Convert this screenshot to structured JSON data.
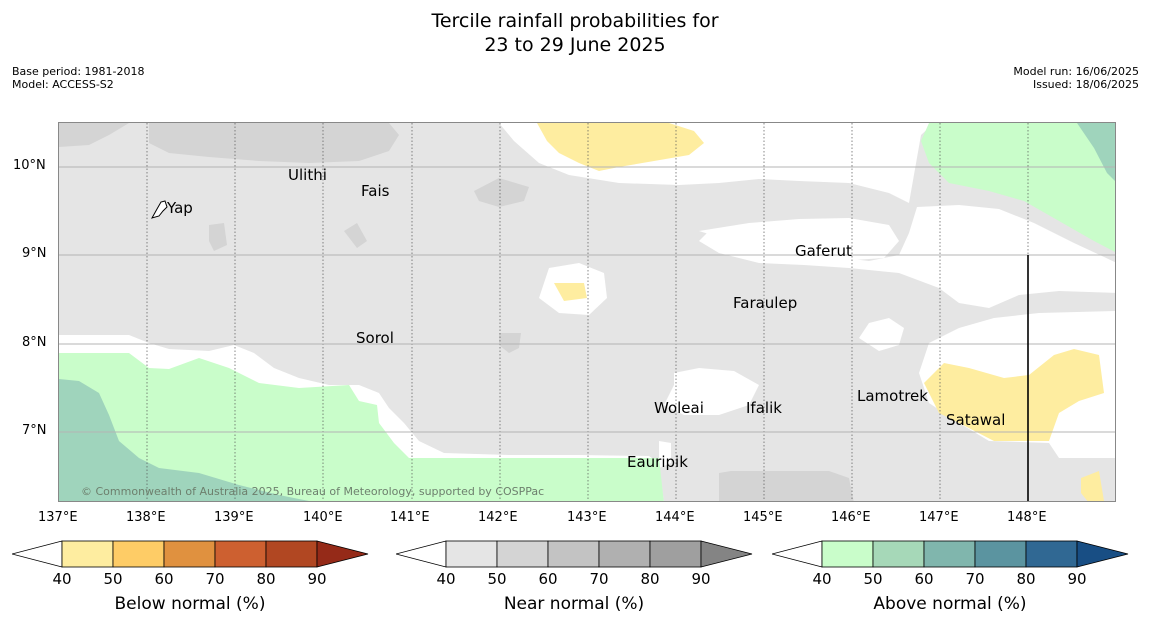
{
  "header": {
    "title_line1": "Tercile rainfall probabilities for",
    "title_line2": "23 to 29 June 2025",
    "base_period": "Base period: 1981-2018",
    "model": "Model: ACCESS-S2",
    "model_run": "Model run: 16/06/2025",
    "issued": "Issued: 18/06/2025"
  },
  "map": {
    "lat_labels": [
      "10°N",
      "9°N",
      "8°N",
      "7°N"
    ],
    "lon_labels": [
      "137°E",
      "138°E",
      "139°E",
      "140°E",
      "141°E",
      "142°E",
      "143°E",
      "144°E",
      "145°E",
      "146°E",
      "147°E",
      "148°E"
    ],
    "places": {
      "yap": "Yap",
      "ulithi": "Ulithi",
      "fais": "Fais",
      "gaferut": "Gaferut",
      "faraulep": "Faraulep",
      "sorol": "Sorol",
      "lamotrek": "Lamotrek",
      "satawal": "Satawal",
      "woleai": "Woleai",
      "ifalik": "Ifalik",
      "eauripik": "Eauripik"
    },
    "copyright": "© Commonwealth of Australia 2025, Bureau of Meteorology, supported by COSPPac",
    "colors": {
      "near_normal_light": "#e5e5e5",
      "near_normal_mid": "#d4d4d4",
      "below_normal_light": "#feeda0",
      "below_normal_mid": "#fecc66",
      "above_normal_light": "#c9fdca",
      "above_normal_mid": "#9fd4bc"
    }
  },
  "colorbars": {
    "ticks": [
      "40",
      "50",
      "60",
      "70",
      "80",
      "90"
    ],
    "below": {
      "label": "Below normal (%)",
      "colors": [
        "#feeda0",
        "#fecc66",
        "#e0913f",
        "#cd6030",
        "#b14722",
        "#952a18"
      ]
    },
    "near": {
      "label": "Near normal (%)",
      "colors": [
        "#e5e5e5",
        "#d4d4d4",
        "#c3c3c3",
        "#b0b0b0",
        "#9f9f9f",
        "#848484"
      ]
    },
    "above": {
      "label": "Above normal (%)",
      "colors": [
        "#c9fdca",
        "#a6d8b8",
        "#80b6ad",
        "#5b94a0",
        "#306893",
        "#184e84"
      ]
    }
  }
}
